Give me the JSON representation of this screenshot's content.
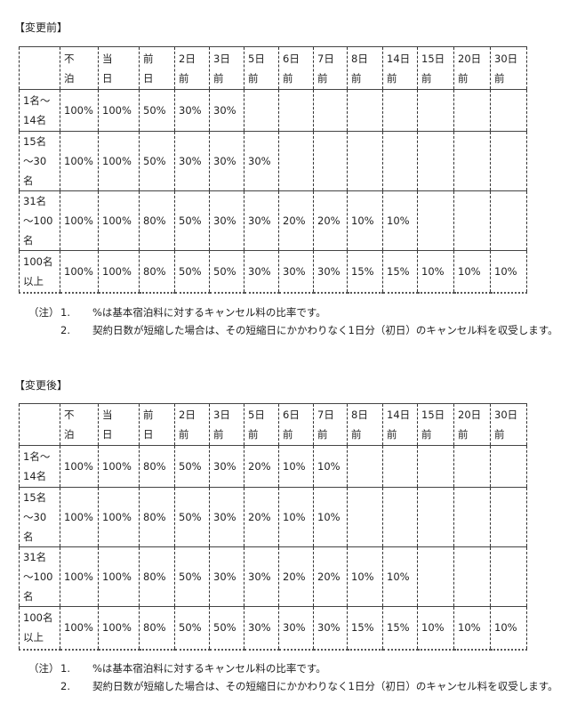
{
  "sections": [
    {
      "title": "【変更前】",
      "header": [
        "",
        "不\n泊",
        "当\n日",
        "前\n日",
        "2日\n前",
        "3日\n前",
        "5日\n前",
        "6日\n前",
        "7日\n前",
        "8日\n前",
        "14日\n前",
        "15日\n前",
        "20日\n前",
        "30日\n前"
      ],
      "rows": [
        [
          "1名～\n14名",
          "100%",
          "100%",
          "50%",
          "30%",
          "30%",
          "",
          "",
          "",
          "",
          "",
          "",
          "",
          ""
        ],
        [
          "15名\n～30\n名",
          "100%",
          "100%",
          "50%",
          "30%",
          "30%",
          "30%",
          "",
          "",
          "",
          "",
          "",
          "",
          ""
        ],
        [
          "31名\n～100\n名",
          "100%",
          "100%",
          "80%",
          "50%",
          "30%",
          "30%",
          "20%",
          "20%",
          "10%",
          "10%",
          "",
          "",
          ""
        ],
        [
          "100名\n以上",
          "100%",
          "100%",
          "80%",
          "50%",
          "50%",
          "30%",
          "30%",
          "30%",
          "15%",
          "15%",
          "10%",
          "10%",
          "10%"
        ]
      ],
      "notes": {
        "label": "（注）",
        "items": [
          {
            "num": "1.",
            "text": "%は基本宿泊料に対するキャンセル料の比率です。"
          },
          {
            "num": "2.",
            "text": "契約日数が短縮した場合は、その短縮日にかかわりなく1日分（初日）のキャンセル料を収受します。"
          }
        ]
      }
    },
    {
      "title": "【変更後】",
      "header": [
        "",
        "不\n泊",
        "当\n日",
        "前\n日",
        "2日\n前",
        "3日\n前",
        "5日\n前",
        "6日\n前",
        "7日\n前",
        "8日\n前",
        "14日\n前",
        "15日\n前",
        "20日\n前",
        "30日\n前"
      ],
      "rows": [
        [
          "1名～\n14名",
          "100%",
          "100%",
          "80%",
          "50%",
          "30%",
          "20%",
          "10%",
          "10%",
          "",
          "",
          "",
          "",
          ""
        ],
        [
          "15名\n～30\n名",
          "100%",
          "100%",
          "80%",
          "50%",
          "30%",
          "20%",
          "10%",
          "10%",
          "",
          "",
          "",
          "",
          ""
        ],
        [
          "31名\n～100\n名",
          "100%",
          "100%",
          "80%",
          "50%",
          "30%",
          "30%",
          "20%",
          "20%",
          "10%",
          "10%",
          "",
          "",
          ""
        ],
        [
          "100名\n以上",
          "100%",
          "100%",
          "80%",
          "50%",
          "50%",
          "30%",
          "30%",
          "30%",
          "15%",
          "15%",
          "10%",
          "10%",
          "10%"
        ]
      ],
      "notes": {
        "label": "（注）",
        "items": [
          {
            "num": "1.",
            "text": "%は基本宿泊料に対するキャンセル料の比率です。"
          },
          {
            "num": "2.",
            "text": "契約日数が短縮した場合は、その短縮日にかかわりなく1日分（初日）のキャンセル料を収受します。"
          }
        ]
      }
    }
  ]
}
